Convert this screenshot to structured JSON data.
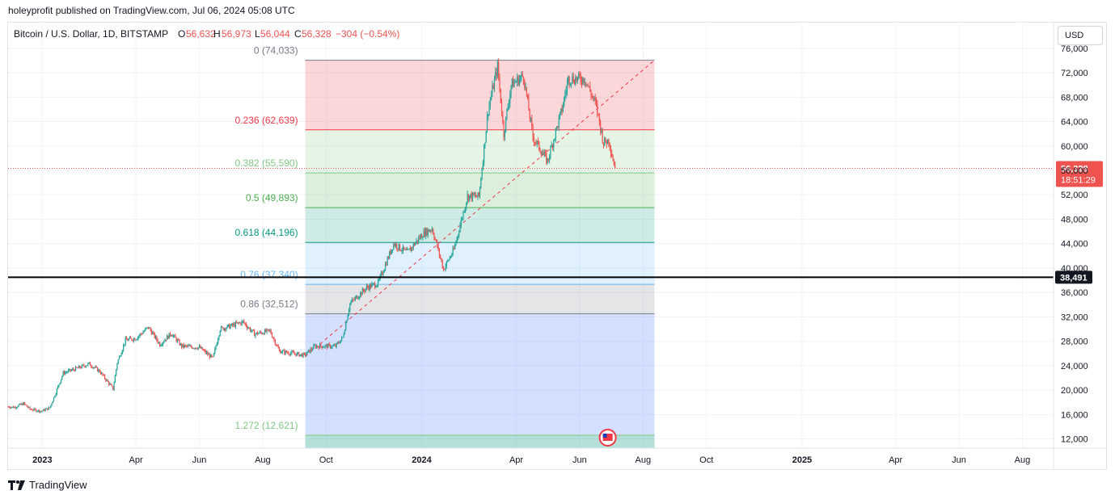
{
  "header": {
    "published": "holeyprofit published on TradingView.com, Jul 06, 2024 05:08 UTC"
  },
  "legend": {
    "symbol": "Bitcoin / U.S. Dollar, 1D, BITSTAMP",
    "o_label": "O",
    "o_value": "56,632",
    "h_label": "H",
    "h_value": "56,973",
    "l_label": "L",
    "l_value": "56,044",
    "c_label": "C",
    "c_value": "56,328",
    "change": "−304 (−0.54%)"
  },
  "currency_button": "USD",
  "footer": {
    "brand": "TradingView"
  },
  "colors": {
    "up": "#26a69a",
    "down": "#ef5350",
    "price_line": "#ef5350",
    "hline": "#000000",
    "trend": "#f23645"
  },
  "chart_data": {
    "type": "candlestick",
    "symbol": "BTCUSD",
    "ylim": [
      10500,
      76500
    ],
    "y_ticks": [
      12000,
      16000,
      20000,
      24000,
      28000,
      32000,
      36000,
      40000,
      44000,
      48000,
      52000,
      56000,
      60000,
      64000,
      68000,
      72000,
      76000
    ],
    "y_tick_labels": [
      "12,000",
      "16,000",
      "20,000",
      "24,000",
      "28,000",
      "32,000",
      "36,000",
      "40,000",
      "44,000",
      "48,000",
      "52,000",
      "56,000",
      "60,000",
      "64,000",
      "68,000",
      "72,000",
      "76,000"
    ],
    "x_range": [
      "2022-11-29",
      "2025-08-31"
    ],
    "x_ticks": [
      {
        "date": "2023-01-01",
        "label": "2023",
        "bold": true
      },
      {
        "date": "2023-04-01",
        "label": "Apr",
        "bold": false
      },
      {
        "date": "2023-06-01",
        "label": "Jun",
        "bold": false
      },
      {
        "date": "2023-08-01",
        "label": "Aug",
        "bold": false
      },
      {
        "date": "2023-10-01",
        "label": "Oct",
        "bold": false
      },
      {
        "date": "2024-01-01",
        "label": "2024",
        "bold": true
      },
      {
        "date": "2024-04-01",
        "label": "Apr",
        "bold": false
      },
      {
        "date": "2024-06-01",
        "label": "Jun",
        "bold": false
      },
      {
        "date": "2024-08-01",
        "label": "Aug",
        "bold": false
      },
      {
        "date": "2024-10-01",
        "label": "Oct",
        "bold": false
      },
      {
        "date": "2025-01-01",
        "label": "2025",
        "bold": true
      },
      {
        "date": "2025-04-01",
        "label": "Apr",
        "bold": false
      },
      {
        "date": "2025-06-01",
        "label": "Jun",
        "bold": false
      },
      {
        "date": "2025-08-01",
        "label": "Aug",
        "bold": false
      }
    ],
    "price_series": [
      [
        "2022-11-29",
        17300
      ],
      [
        "2022-12-05",
        17200
      ],
      [
        "2022-12-14",
        17800
      ],
      [
        "2022-12-20",
        16900
      ],
      [
        "2022-12-31",
        16550
      ],
      [
        "2023-01-08",
        17100
      ],
      [
        "2023-01-13",
        19200
      ],
      [
        "2023-01-21",
        22800
      ],
      [
        "2023-02-02",
        23500
      ],
      [
        "2023-02-15",
        24300
      ],
      [
        "2023-02-25",
        23100
      ],
      [
        "2023-03-10",
        20200
      ],
      [
        "2023-03-14",
        24500
      ],
      [
        "2023-03-22",
        28200
      ],
      [
        "2023-04-01",
        28500
      ],
      [
        "2023-04-13",
        30300
      ],
      [
        "2023-04-24",
        27500
      ],
      [
        "2023-05-05",
        29300
      ],
      [
        "2023-05-15",
        27200
      ],
      [
        "2023-06-01",
        27000
      ],
      [
        "2023-06-14",
        25200
      ],
      [
        "2023-06-21",
        30000
      ],
      [
        "2023-07-05",
        30700
      ],
      [
        "2023-07-13",
        31200
      ],
      [
        "2023-07-24",
        29200
      ],
      [
        "2023-08-08",
        29700
      ],
      [
        "2023-08-17",
        26400
      ],
      [
        "2023-09-10",
        25700
      ],
      [
        "2023-09-20",
        27200
      ],
      [
        "2023-10-10",
        27200
      ],
      [
        "2023-10-17",
        28600
      ],
      [
        "2023-10-24",
        34200
      ],
      [
        "2023-11-09",
        36800
      ],
      [
        "2023-11-20",
        37500
      ],
      [
        "2023-12-05",
        44000
      ],
      [
        "2023-12-18",
        42500
      ],
      [
        "2024-01-02",
        45600
      ],
      [
        "2024-01-11",
        46500
      ],
      [
        "2024-01-22",
        39800
      ],
      [
        "2024-02-01",
        43000
      ],
      [
        "2024-02-14",
        51800
      ],
      [
        "2024-02-25",
        51700
      ],
      [
        "2024-03-05",
        66000
      ],
      [
        "2024-03-14",
        73000
      ],
      [
        "2024-03-20",
        62000
      ],
      [
        "2024-03-27",
        70000
      ],
      [
        "2024-04-08",
        71500
      ],
      [
        "2024-04-17",
        61500
      ],
      [
        "2024-05-01",
        57500
      ],
      [
        "2024-05-15",
        66000
      ],
      [
        "2024-05-21",
        71000
      ],
      [
        "2024-06-06",
        71000
      ],
      [
        "2024-06-17",
        66500
      ],
      [
        "2024-06-24",
        60500
      ],
      [
        "2024-06-29",
        61000
      ],
      [
        "2024-07-05",
        56328
      ]
    ],
    "last_price": {
      "value": 56328,
      "label": "56,328",
      "countdown": "18:51:29"
    },
    "horizontal_line": {
      "value": 38491,
      "label": "38,491"
    },
    "fib_retracement": {
      "start_date": "2023-09-11",
      "end_date": "2024-08-12",
      "trend_from": {
        "date": "2023-09-11",
        "value": 25500
      },
      "trend_to": {
        "date": "2024-08-12",
        "value": 74033
      },
      "levels": [
        {
          "ratio": "0",
          "price": 74033,
          "label": "0 (74,033)",
          "line": "#787b86",
          "fill": "rgba(242,54,69,0.20)",
          "text": "#787b86"
        },
        {
          "ratio": "0.236",
          "price": 62639,
          "label": "0.236 (62,639)",
          "line": "#f23645",
          "fill": "rgba(129,199,132,0.20)",
          "text": "#f23645"
        },
        {
          "ratio": "0.382",
          "price": 55590,
          "label": "0.382 (55,590)",
          "line": "#81c784",
          "fill": "rgba(76,175,80,0.20)",
          "text": "#81c784"
        },
        {
          "ratio": "0.5",
          "price": 49893,
          "label": "0.5 (49,893)",
          "line": "#4caf50",
          "fill": "rgba(8,153,129,0.20)",
          "text": "#4caf50"
        },
        {
          "ratio": "0.618",
          "price": 44196,
          "label": "0.618 (44,196)",
          "line": "#089981",
          "fill": "rgba(100,181,246,0.20)",
          "text": "#089981"
        },
        {
          "ratio": "0.76",
          "price": 37340,
          "label": "0.76 (37,340)",
          "line": "#64b5f6",
          "fill": "rgba(120,123,134,0.20)",
          "text": "#64b5f6"
        },
        {
          "ratio": "0.86",
          "price": 32512,
          "label": "0.86 (32,512)",
          "line": "#787b86",
          "fill": "rgba(41,98,255,0.20)",
          "text": "#787b86"
        },
        {
          "ratio": "1.272",
          "price": 12621,
          "label": "1.272 (12,621)",
          "line": "#81c784",
          "fill": "rgba(8,153,129,0.30)",
          "text": "#81c784"
        }
      ]
    }
  }
}
